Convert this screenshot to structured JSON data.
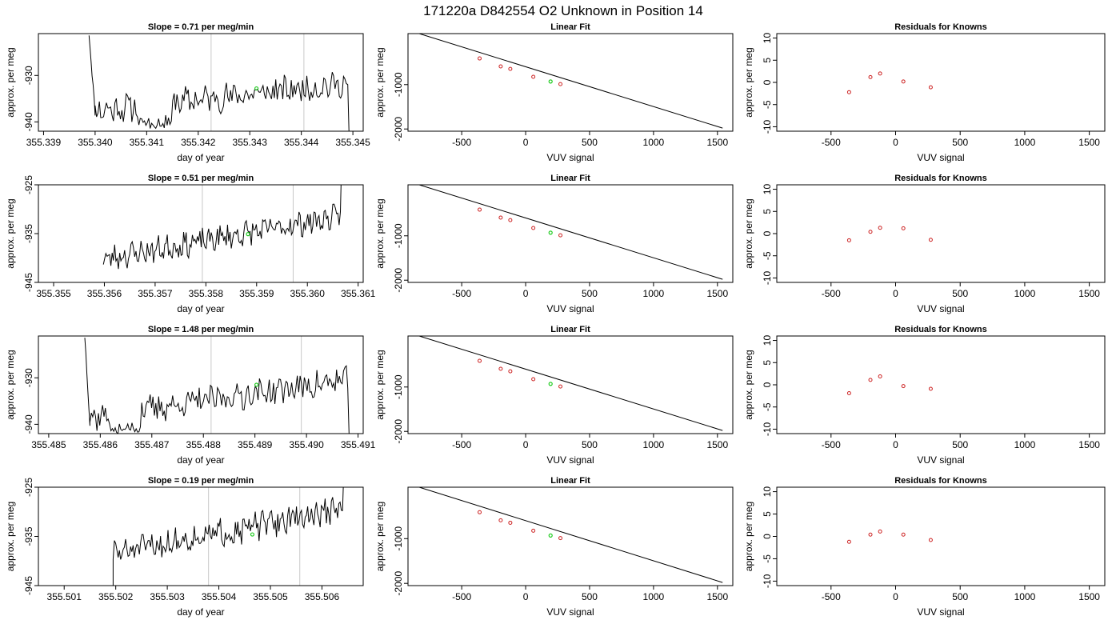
{
  "figure": {
    "title": "171220a     D842554   O2 Unknown in Position  14"
  },
  "chart_data": [
    {
      "panel": "row1-time",
      "type": "line",
      "title": "Slope =  0.71  per meg/min",
      "xlabel": "day of year",
      "ylabel": "approx. per meg",
      "xlim": [
        355.3389,
        355.3452
      ],
      "ylim": [
        -942,
        -921
      ],
      "xticks": [
        "355.339",
        "355.340",
        "355.341",
        "355.342",
        "355.343",
        "355.344",
        "355.345"
      ],
      "xtick_values": [
        355.339,
        355.34,
        355.341,
        355.342,
        355.343,
        355.344,
        355.345
      ],
      "yticks": [
        "-930",
        "-940"
      ],
      "ytick_values": [
        -930,
        -940
      ],
      "vlines": [
        355.34225,
        355.34405
      ],
      "trace": {
        "x0": 355.34,
        "x1": 355.3449,
        "n": 180,
        "base0": -937.6,
        "base1": -931.8,
        "amp": 2.6,
        "seed": 11,
        "spike": {
          "from": -921,
          "to": -938,
          "steps": 6
        },
        "dip": {
          "x0": 355.3408,
          "x1": 355.3415,
          "depth": -941.5
        },
        "end_drop": -942
      },
      "marker": {
        "x": 355.34313,
        "y": -932.8,
        "color": "#22cc22"
      }
    },
    {
      "panel": "row1-fit",
      "type": "scatter",
      "title": "Linear Fit",
      "xlabel": "VUV signal",
      "ylabel": "approx. per meg",
      "xlim": [
        -920,
        1620
      ],
      "ylim": [
        -2050,
        150
      ],
      "xticks": [
        "-500",
        "0",
        "500",
        "1000",
        "1500"
      ],
      "xtick_values": [
        -500,
        0,
        500,
        1000,
        1500
      ],
      "yticks": [
        "-1000",
        "-2000"
      ],
      "ytick_values": [
        -1000,
        -2000
      ],
      "line": {
        "x": [
          -830,
          1540
        ],
        "y": [
          148,
          -1980
        ]
      },
      "knowns": {
        "x": [
          -360,
          -195,
          -120,
          60,
          272
        ],
        "y": [
          -410,
          -590,
          -645,
          -823,
          -988
        ],
        "color": "#cc2222"
      },
      "unknown": {
        "x": [
          195
        ],
        "y": [
          -930
        ],
        "color": "#22cc22"
      }
    },
    {
      "panel": "row1-resid",
      "type": "scatter",
      "title": "Residuals for Knowns",
      "xlabel": "VUV signal",
      "ylabel": "approx. per meg",
      "xlim": [
        -920,
        1620
      ],
      "ylim": [
        -11,
        11
      ],
      "xticks": [
        "-500",
        "0",
        "500",
        "1000",
        "1500"
      ],
      "xtick_values": [
        -500,
        0,
        500,
        1000,
        1500
      ],
      "yticks": [
        "-10",
        "-5",
        "0",
        "5",
        "10"
      ],
      "ytick_values": [
        -10,
        -5,
        0,
        5,
        10
      ],
      "knowns": {
        "x": [
          -360,
          -195,
          -120,
          60,
          272
        ],
        "y": [
          -2.2,
          1.2,
          2.0,
          0.2,
          -1.1
        ],
        "color": "#cc2222"
      }
    },
    {
      "panel": "row2-time",
      "type": "line",
      "title": "Slope =  0.51  per meg/min",
      "xlabel": "day of year",
      "ylabel": "approx. per meg",
      "xlim": [
        355.3547,
        355.3611
      ],
      "ylim": [
        -945,
        -925
      ],
      "xticks": [
        "355.355",
        "355.356",
        "355.357",
        "355.358",
        "355.359",
        "355.360",
        "355.361"
      ],
      "xtick_values": [
        355.355,
        355.356,
        355.357,
        355.358,
        355.359,
        355.36,
        355.361
      ],
      "yticks": [
        "-925",
        "-935",
        "-945"
      ],
      "ytick_values": [
        -925,
        -935,
        -945
      ],
      "vlines": [
        355.35793,
        355.35972
      ],
      "trace": {
        "x0": 355.35598,
        "x1": 355.36065,
        "n": 190,
        "base0": -940.2,
        "base1": -931.5,
        "amp": 2.2,
        "seed": 23,
        "spike": null,
        "dip": null,
        "end_rise": -925
      },
      "marker": {
        "x": 355.35883,
        "y": -935.1,
        "color": "#22cc22"
      }
    },
    {
      "panel": "row2-fit",
      "type": "scatter",
      "title": "Linear Fit",
      "xlabel": "VUV signal",
      "ylabel": "approx. per meg",
      "xlim": [
        -920,
        1620
      ],
      "ylim": [
        -2050,
        150
      ],
      "xticks": [
        "-500",
        "0",
        "500",
        "1000",
        "1500"
      ],
      "xtick_values": [
        -500,
        0,
        500,
        1000,
        1500
      ],
      "yticks": [
        "-1000",
        "-2000"
      ],
      "ytick_values": [
        -1000,
        -2000
      ],
      "line": {
        "x": [
          -830,
          1540
        ],
        "y": [
          148,
          -1980
        ]
      },
      "knowns": {
        "x": [
          -360,
          -195,
          -120,
          60,
          272
        ],
        "y": [
          -410,
          -590,
          -645,
          -823,
          -988
        ],
        "color": "#cc2222"
      },
      "unknown": {
        "x": [
          195
        ],
        "y": [
          -930
        ],
        "color": "#22cc22"
      }
    },
    {
      "panel": "row2-resid",
      "type": "scatter",
      "title": "Residuals for Knowns",
      "xlabel": "VUV signal",
      "ylabel": "approx. per meg",
      "xlim": [
        -920,
        1620
      ],
      "ylim": [
        -11,
        11
      ],
      "xticks": [
        "-500",
        "0",
        "500",
        "1000",
        "1500"
      ],
      "xtick_values": [
        -500,
        0,
        500,
        1000,
        1500
      ],
      "yticks": [
        "-10",
        "-5",
        "0",
        "5",
        "10"
      ],
      "ytick_values": [
        -10,
        -5,
        0,
        5,
        10
      ],
      "knowns": {
        "x": [
          -360,
          -195,
          -120,
          60,
          272
        ],
        "y": [
          -1.5,
          0.4,
          1.3,
          1.2,
          -1.4
        ],
        "color": "#cc2222"
      }
    },
    {
      "panel": "row3-time",
      "type": "line",
      "title": "Slope =  1.48  per meg/min",
      "xlabel": "day of year",
      "ylabel": "approx. per meg",
      "xlim": [
        355.4848,
        355.4911
      ],
      "ylim": [
        -942,
        -921
      ],
      "xticks": [
        "355.485",
        "355.486",
        "355.487",
        "355.488",
        "355.489",
        "355.490",
        "355.491"
      ],
      "xtick_values": [
        355.485,
        355.486,
        355.487,
        355.488,
        355.489,
        355.49,
        355.491
      ],
      "yticks": [
        "-930",
        "-940"
      ],
      "ytick_values": [
        -930,
        -940
      ],
      "vlines": [
        355.48815,
        355.4899
      ],
      "trace": {
        "x0": 355.4858,
        "x1": 355.4908,
        "n": 185,
        "base0": -938.5,
        "base1": -930.5,
        "amp": 2.6,
        "seed": 37,
        "spike": {
          "from": -921,
          "to": -940,
          "steps": 5
        },
        "dip": {
          "x0": 355.4862,
          "x1": 355.4868,
          "depth": -942
        },
        "end_drop": -942
      },
      "marker": {
        "x": 355.48903,
        "y": -931.5,
        "color": "#22cc22"
      }
    },
    {
      "panel": "row3-fit",
      "type": "scatter",
      "title": "Linear Fit",
      "xlabel": "VUV signal",
      "ylabel": "approx. per meg",
      "xlim": [
        -920,
        1620
      ],
      "ylim": [
        -2050,
        150
      ],
      "xticks": [
        "-500",
        "0",
        "500",
        "1000",
        "1500"
      ],
      "xtick_values": [
        -500,
        0,
        500,
        1000,
        1500
      ],
      "yticks": [
        "-1000",
        "-2000"
      ],
      "ytick_values": [
        -1000,
        -2000
      ],
      "line": {
        "x": [
          -830,
          1540
        ],
        "y": [
          148,
          -1980
        ]
      },
      "knowns": {
        "x": [
          -360,
          -195,
          -120,
          60,
          272
        ],
        "y": [
          -410,
          -590,
          -645,
          -823,
          -988
        ],
        "color": "#cc2222"
      },
      "unknown": {
        "x": [
          195
        ],
        "y": [
          -930
        ],
        "color": "#22cc22"
      }
    },
    {
      "panel": "row3-resid",
      "type": "scatter",
      "title": "Residuals for Knowns",
      "xlabel": "VUV signal",
      "ylabel": "approx. per meg",
      "xlim": [
        -920,
        1620
      ],
      "ylim": [
        -11,
        11
      ],
      "xticks": [
        "-500",
        "0",
        "500",
        "1000",
        "1500"
      ],
      "xtick_values": [
        -500,
        0,
        500,
        1000,
        1500
      ],
      "yticks": [
        "-10",
        "-5",
        "0",
        "5",
        "10"
      ],
      "ytick_values": [
        -10,
        -5,
        0,
        5,
        10
      ],
      "knowns": {
        "x": [
          -360,
          -195,
          -120,
          60,
          272
        ],
        "y": [
          -1.9,
          1.1,
          1.9,
          -0.3,
          -0.9
        ],
        "color": "#cc2222"
      }
    },
    {
      "panel": "row4-time",
      "type": "line",
      "title": "Slope =  0.19  per meg/min",
      "xlabel": "day of year",
      "ylabel": "approx. per meg",
      "xlim": [
        355.5005,
        355.5068
      ],
      "ylim": [
        -945,
        -925
      ],
      "xticks": [
        "355.501",
        "355.502",
        "355.503",
        "355.504",
        "355.505",
        "355.506"
      ],
      "xtick_values": [
        355.501,
        355.502,
        355.503,
        355.504,
        355.505,
        355.506
      ],
      "yticks": [
        "-925",
        "-935",
        "-945"
      ],
      "ytick_values": [
        -925,
        -935,
        -945
      ],
      "vlines": [
        355.5038,
        355.50557
      ],
      "trace": {
        "x0": 355.50195,
        "x1": 355.5064,
        "n": 185,
        "base0": -938.5,
        "base1": -929.5,
        "amp": 2.4,
        "seed": 51,
        "spike": null,
        "dip": null,
        "start_drop": -945,
        "end_rise": -925
      },
      "marker": {
        "x": 355.50465,
        "y": -934.6,
        "color": "#22cc22"
      }
    },
    {
      "panel": "row4-fit",
      "type": "scatter",
      "title": "Linear Fit",
      "xlabel": "VUV signal",
      "ylabel": "approx. per meg",
      "xlim": [
        -920,
        1620
      ],
      "ylim": [
        -2050,
        150
      ],
      "xticks": [
        "-500",
        "0",
        "500",
        "1000",
        "1500"
      ],
      "xtick_values": [
        -500,
        0,
        500,
        1000,
        1500
      ],
      "yticks": [
        "-1000",
        "-2000"
      ],
      "ytick_values": [
        -1000,
        -2000
      ],
      "line": {
        "x": [
          -830,
          1540
        ],
        "y": [
          148,
          -1980
        ]
      },
      "knowns": {
        "x": [
          -360,
          -195,
          -120,
          60,
          272
        ],
        "y": [
          -410,
          -590,
          -645,
          -823,
          -988
        ],
        "color": "#cc2222"
      },
      "unknown": {
        "x": [
          195
        ],
        "y": [
          -930
        ],
        "color": "#22cc22"
      }
    },
    {
      "panel": "row4-resid",
      "type": "scatter",
      "title": "Residuals for Knowns",
      "xlabel": "VUV signal",
      "ylabel": "approx. per meg",
      "xlim": [
        -920,
        1620
      ],
      "ylim": [
        -11,
        11
      ],
      "xticks": [
        "-500",
        "0",
        "500",
        "1000",
        "1500"
      ],
      "xtick_values": [
        -500,
        0,
        500,
        1000,
        1500
      ],
      "yticks": [
        "-10",
        "-5",
        "0",
        "5",
        "10"
      ],
      "ytick_values": [
        -10,
        -5,
        0,
        5,
        10
      ],
      "knowns": {
        "x": [
          -360,
          -195,
          -120,
          60,
          272
        ],
        "y": [
          -1.2,
          0.4,
          1.1,
          0.4,
          -0.8
        ],
        "color": "#cc2222"
      }
    }
  ]
}
